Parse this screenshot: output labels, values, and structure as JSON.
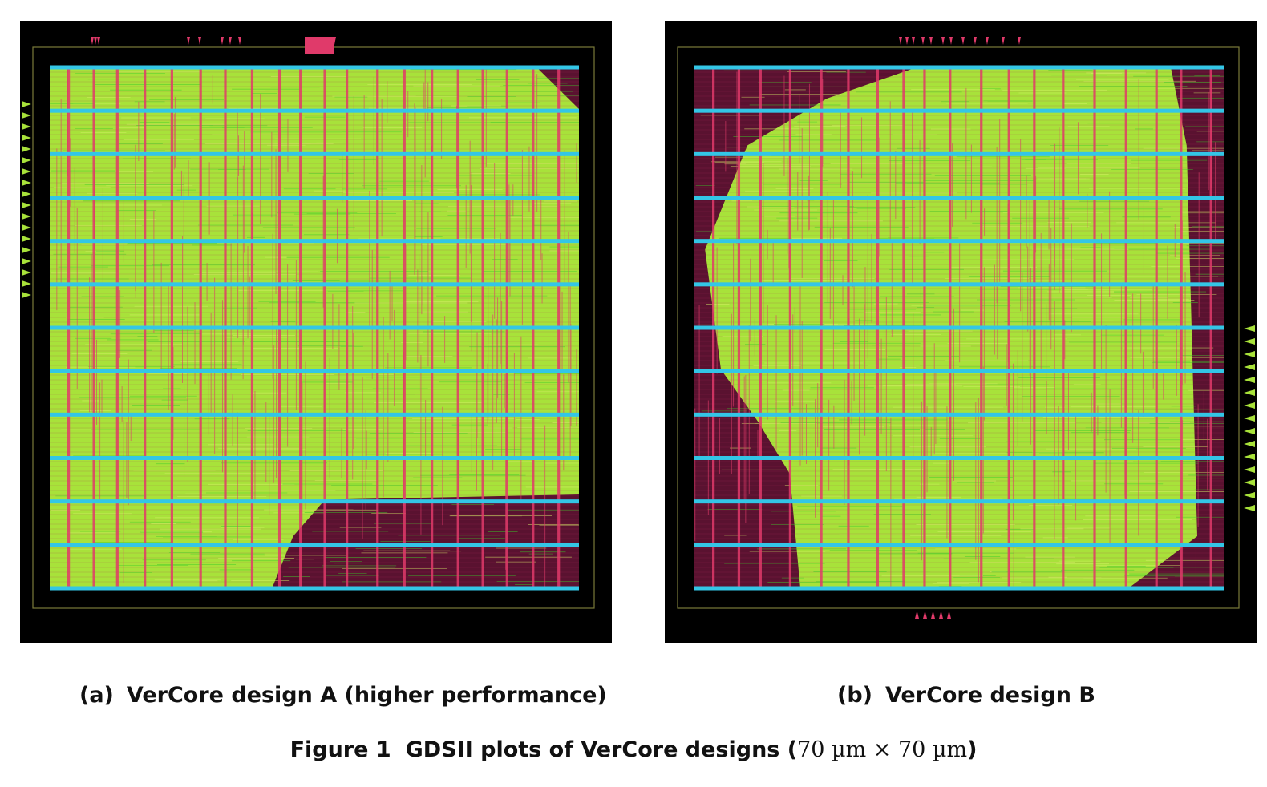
{
  "figure": {
    "label": "Figure 1",
    "caption_prefix": "GDSII plots of VerCore designs (",
    "caption_math": "70 µm × 70 µm",
    "caption_suffix": ")"
  },
  "panels": [
    {
      "tag": "(a)",
      "caption": "VerCore design A (higher performance)"
    },
    {
      "tag": "(b)",
      "caption": "VerCore design B"
    }
  ],
  "colors": {
    "background": "#000000",
    "power_rail": "#33c6e6",
    "metal_vertical": "#e03a6a",
    "logic_fill": "#a8e23a",
    "wire_green": "#3ccb2a",
    "empty_region": "#5a1230",
    "boundary": "#7a7a3a"
  }
}
